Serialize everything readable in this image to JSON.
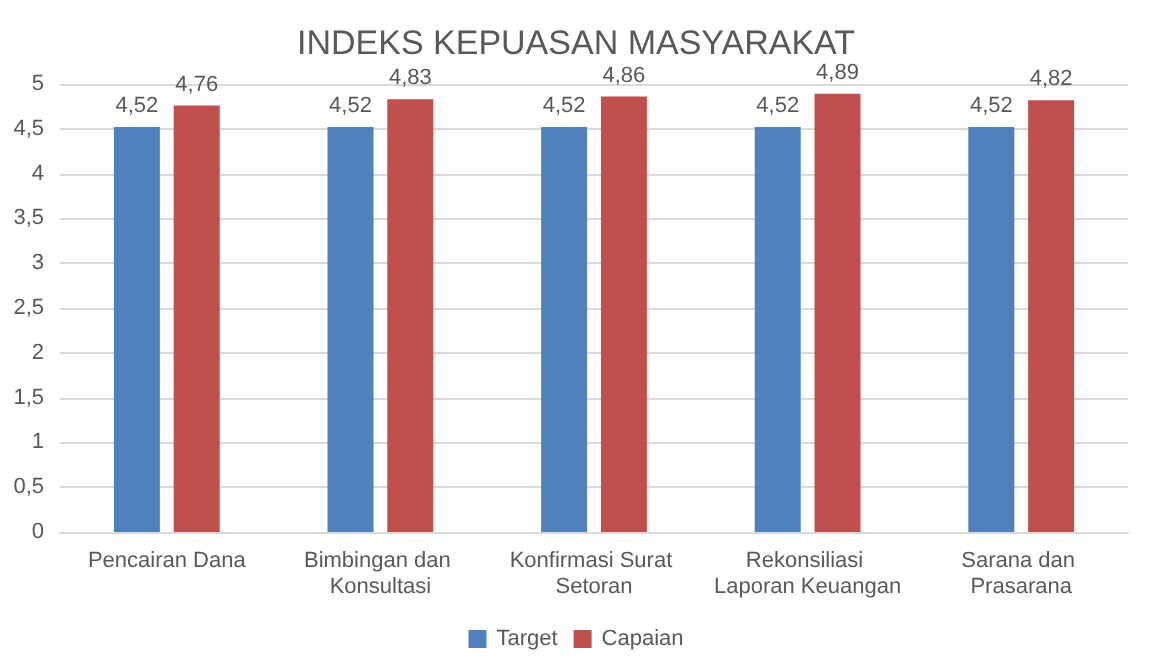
{
  "chart_data": {
    "type": "bar",
    "title": "INDEKS KEPUASAN MASYARAKAT",
    "categories": [
      "Pencairan Dana",
      "Bimbingan dan Konsultasi",
      "Konfirmasi Surat Setoran",
      "Rekonsiliasi Laporan Keuangan",
      "Sarana dan Prasarana"
    ],
    "series": [
      {
        "name": "Target",
        "color": "#4f81bd",
        "values": [
          4.52,
          4.52,
          4.52,
          4.52,
          4.52
        ],
        "value_labels": [
          "4,52",
          "4,52",
          "4,52",
          "4,52",
          "4,52"
        ]
      },
      {
        "name": "Capaian",
        "color": "#c0504d",
        "values": [
          4.76,
          4.83,
          4.86,
          4.89,
          4.82
        ],
        "value_labels": [
          "4,76",
          "4,83",
          "4,86",
          "4,89",
          "4,82"
        ]
      }
    ],
    "ylim": [
      0,
      5
    ],
    "yticks": [
      0,
      {
        "value": 0.5,
        "label": "0,5"
      },
      1,
      {
        "value": 1.5,
        "label": "1,5"
      },
      2,
      {
        "value": 2.5,
        "label": "2,5"
      },
      3,
      {
        "value": 3.5,
        "label": "3,5"
      },
      4,
      {
        "value": 4.5,
        "label": "4,5"
      },
      5
    ],
    "grid": "y",
    "legend": "bottom"
  }
}
